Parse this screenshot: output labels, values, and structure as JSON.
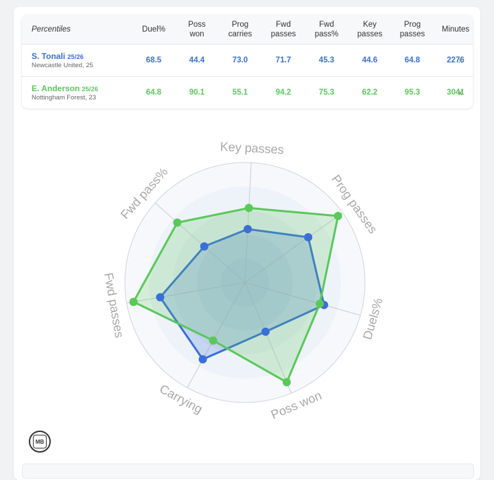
{
  "table": {
    "header_label": "Percentiles",
    "columns": [
      "Duel%",
      "Poss\nwon",
      "Prog\ncarries",
      "Fwd\npasses",
      "Fwd\npass%",
      "Key\npasses",
      "Prog\npasses",
      "Minutes"
    ],
    "players": [
      {
        "name": "S. Tonali",
        "season": "25/26",
        "team": "Newcastle United, 25",
        "values": [
          "68.5",
          "44.4",
          "73.0",
          "71.7",
          "45.3",
          "44.6",
          "64.8",
          "2276"
        ],
        "remove_label": "x",
        "color": "#3a6fd8"
      },
      {
        "name": "E. Anderson",
        "season": "25/26",
        "team": "Nottingham Forest, 23",
        "values": [
          "64.8",
          "90.1",
          "55.1",
          "94.2",
          "75.3",
          "62.2",
          "95.3",
          "3041"
        ],
        "remove_label": "x",
        "color": "#5ac85a"
      }
    ]
  },
  "chart_data": {
    "type": "radar",
    "axes": [
      "Key passes",
      "Prog passes",
      "Duels%",
      "Poss won",
      "Carrying",
      "Fwd passes",
      "Fwd pass%"
    ],
    "range": [
      0,
      100
    ],
    "series": [
      {
        "name": "S. Tonali",
        "values": [
          44.6,
          64.8,
          68.5,
          44.4,
          73.0,
          71.7,
          45.3
        ],
        "color": "#3a6fd8"
      },
      {
        "name": "E. Anderson",
        "values": [
          62.2,
          95.3,
          64.8,
          90.1,
          55.1,
          94.2,
          75.3
        ],
        "color": "#5ac85a"
      }
    ]
  },
  "logo_text": "MB"
}
